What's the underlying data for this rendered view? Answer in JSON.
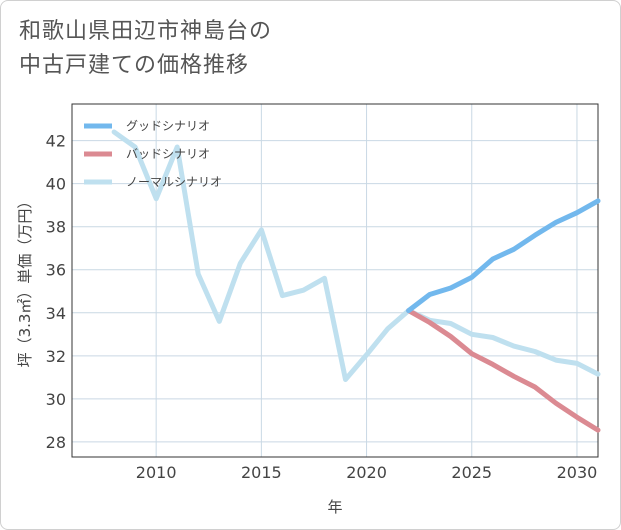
{
  "title_lines": [
    "和歌山県田辺市神島台の",
    "中古戸建ての価格推移"
  ],
  "chart_data": {
    "type": "line",
    "title": "和歌山県田辺市神島台の中古戸建ての価格推移",
    "xlabel": "年",
    "ylabel": "坪（3.3㎡）単価（万円）",
    "xlim": [
      2006,
      2031
    ],
    "ylim": [
      27.3,
      43.7
    ],
    "xticks": [
      2010,
      2015,
      2020,
      2025,
      2030
    ],
    "yticks": [
      28,
      30,
      32,
      34,
      36,
      38,
      40,
      42
    ],
    "grid": true,
    "legend_position": "top-left",
    "series": [
      {
        "name": "グッドシナリオ",
        "color": "#72b8ed",
        "x": [
          2022,
          2023,
          2024,
          2025,
          2026,
          2027,
          2028,
          2029,
          2030,
          2031
        ],
        "y": [
          34.1,
          34.85,
          35.15,
          35.65,
          36.5,
          36.95,
          37.6,
          38.2,
          38.65,
          39.2
        ]
      },
      {
        "name": "バッドシナリオ",
        "color": "#db8a92",
        "x": [
          2022,
          2023,
          2024,
          2025,
          2026,
          2027,
          2028,
          2029,
          2030,
          2031
        ],
        "y": [
          34.1,
          33.55,
          32.9,
          32.1,
          31.6,
          31.05,
          30.55,
          29.8,
          29.15,
          28.55
        ]
      },
      {
        "name": "ノーマルシナリオ",
        "color": "#bfe0ef",
        "x": [
          2008,
          2009,
          2010,
          2011,
          2012,
          2013,
          2014,
          2015,
          2016,
          2017,
          2018,
          2019,
          2020,
          2021,
          2022,
          2023,
          2024,
          2025,
          2026,
          2027,
          2028,
          2029,
          2030,
          2031
        ],
        "y": [
          42.4,
          41.7,
          39.3,
          41.7,
          35.8,
          33.6,
          36.3,
          37.85,
          34.8,
          35.05,
          35.6,
          30.9,
          32.05,
          33.25,
          34.1,
          33.65,
          33.5,
          33.0,
          32.85,
          32.45,
          32.2,
          31.8,
          31.65,
          31.15
        ]
      }
    ]
  }
}
